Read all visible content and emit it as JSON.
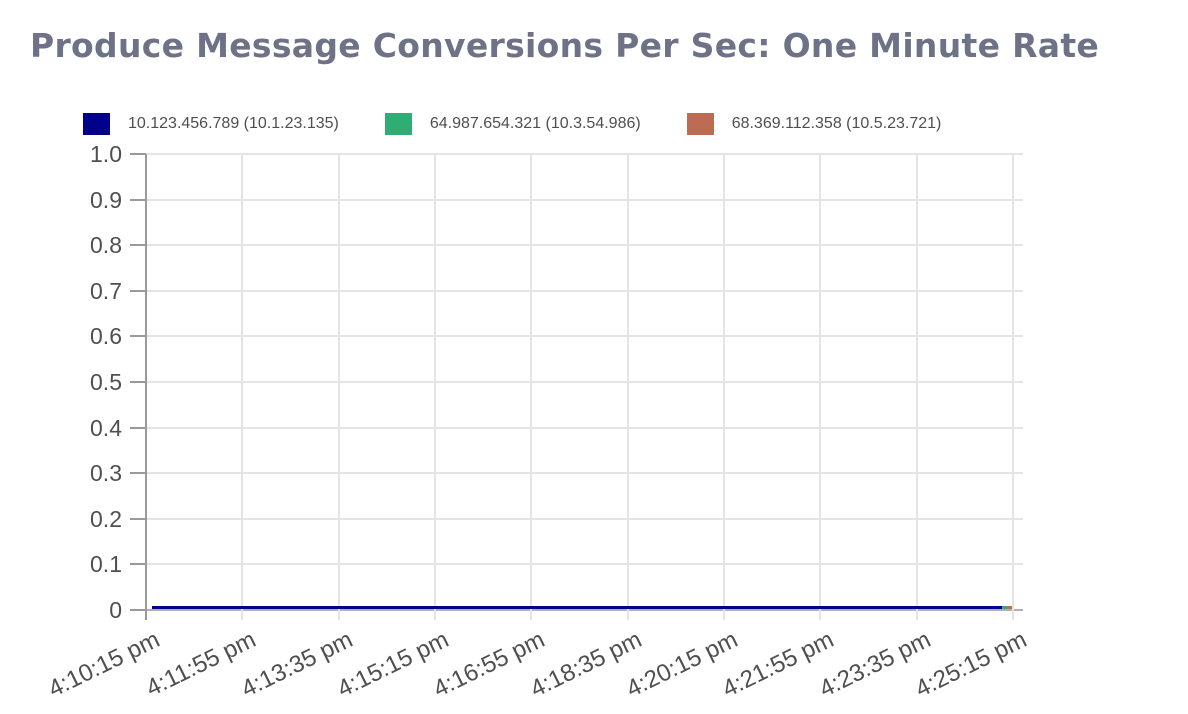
{
  "title": "Produce Message Conversions Per Sec: One Minute Rate",
  "legend": {
    "items": [
      {
        "label": "10.123.456.789 (10.1.23.135)",
        "color": "#00008B"
      },
      {
        "label": "64.987.654.321 (10.3.54.986)",
        "color": "#2FAD74"
      },
      {
        "label": "68.369.112.358 (10.5.23.721)",
        "color": "#BD6B52"
      }
    ]
  },
  "palette": {
    "background": "#ffffff",
    "title_color": "#6E7287",
    "label_color": "#4f4f4f",
    "grid": "#e4e4e4",
    "tick": "#9a9a9a",
    "axis": "#9a9a9a",
    "zero_line": "#b0b0b0"
  },
  "chart_data": {
    "type": "line",
    "title": "Produce Message Conversions Per Sec: One Minute Rate",
    "x": [
      "4:10:15 pm",
      "4:11:55 pm",
      "4:13:35 pm",
      "4:15:15 pm",
      "4:16:55 pm",
      "4:18:35 pm",
      "4:20:15 pm",
      "4:21:55 pm",
      "4:23:35 pm",
      "4:25:15 pm"
    ],
    "series": [
      {
        "name": "10.123.456.789 (10.1.23.135)",
        "color": "#00008B",
        "values": [
          0,
          0,
          0,
          0,
          0,
          0,
          0,
          0,
          0,
          0
        ]
      },
      {
        "name": "64.987.654.321 (10.3.54.986)",
        "color": "#2FAD74",
        "values": [
          0,
          0,
          0,
          0,
          0,
          0,
          0,
          0,
          0,
          0
        ]
      },
      {
        "name": "68.369.112.358 (10.5.23.721)",
        "color": "#BD6B52",
        "values": [
          0,
          0,
          0,
          0,
          0,
          0,
          0,
          0,
          0,
          0
        ]
      }
    ],
    "ylabels": [
      "1.0",
      "0.9",
      "0.8",
      "0.7",
      "0.6",
      "0.5",
      "0.4",
      "0.3",
      "0.2",
      "0.1",
      "0"
    ],
    "ylim": [
      0,
      1.0
    ],
    "xlabel": "",
    "ylabel": "",
    "grid": true,
    "legend_position": "top-left"
  }
}
